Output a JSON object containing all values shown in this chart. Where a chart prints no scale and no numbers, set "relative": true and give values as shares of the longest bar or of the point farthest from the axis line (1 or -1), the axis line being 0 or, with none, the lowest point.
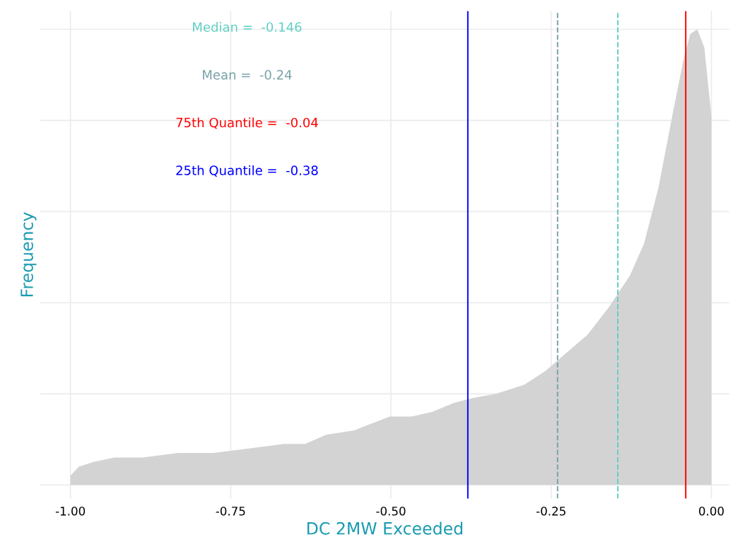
{
  "chart_data": {
    "type": "area",
    "relative": true,
    "xlabel": "DC 2MW Exceeded",
    "ylabel": "Frequency",
    "x": [
      -1.0,
      -0.987,
      -0.965,
      -0.932,
      -0.888,
      -0.832,
      -0.777,
      -0.722,
      -0.667,
      -0.634,
      -0.601,
      -0.557,
      -0.502,
      -0.468,
      -0.436,
      -0.402,
      -0.375,
      -0.336,
      -0.292,
      -0.259,
      -0.226,
      -0.193,
      -0.16,
      -0.127,
      -0.105,
      -0.083,
      -0.061,
      -0.044,
      -0.033,
      -0.022,
      -0.011,
      0.0
    ],
    "series": [
      {
        "color": "#d3d3d3",
        "values": [
          0.02,
          0.04,
          0.05,
          0.06,
          0.06,
          0.07,
          0.07,
          0.08,
          0.09,
          0.09,
          0.11,
          0.12,
          0.15,
          0.15,
          0.16,
          0.18,
          0.19,
          0.2,
          0.22,
          0.25,
          0.29,
          0.33,
          0.39,
          0.46,
          0.53,
          0.65,
          0.81,
          0.93,
          0.99,
          1.0,
          0.96,
          0.81
        ]
      }
    ],
    "xlim": [
      -1.047,
      0.028
    ],
    "xticks": [
      {
        "value": -1.0,
        "label": "-1.00"
      },
      {
        "value": -0.75,
        "label": "-0.75"
      },
      {
        "value": -0.5,
        "label": "-0.50"
      },
      {
        "value": -0.25,
        "label": "-0.25"
      },
      {
        "value": 0.0,
        "label": "0.00"
      }
    ],
    "tick_labels": "x",
    "grid": true,
    "ref_lines": [
      {
        "axis": "x",
        "value": -0.146,
        "label": "Median =  -0.146",
        "color": "#5fcfc5",
        "line_style": "dashed"
      },
      {
        "axis": "x",
        "value": -0.24,
        "label": "Mean =  -0.24",
        "color": "#79a1aa",
        "line_style": "dashed"
      },
      {
        "axis": "x",
        "value": -0.04,
        "label": "75th Quantile =  -0.04",
        "color": "#ff0000",
        "line_style": "solid"
      },
      {
        "axis": "x",
        "value": -0.38,
        "label": "25th Quantile =  -0.38",
        "color": "#0000ff",
        "line_style": "solid"
      }
    ]
  }
}
